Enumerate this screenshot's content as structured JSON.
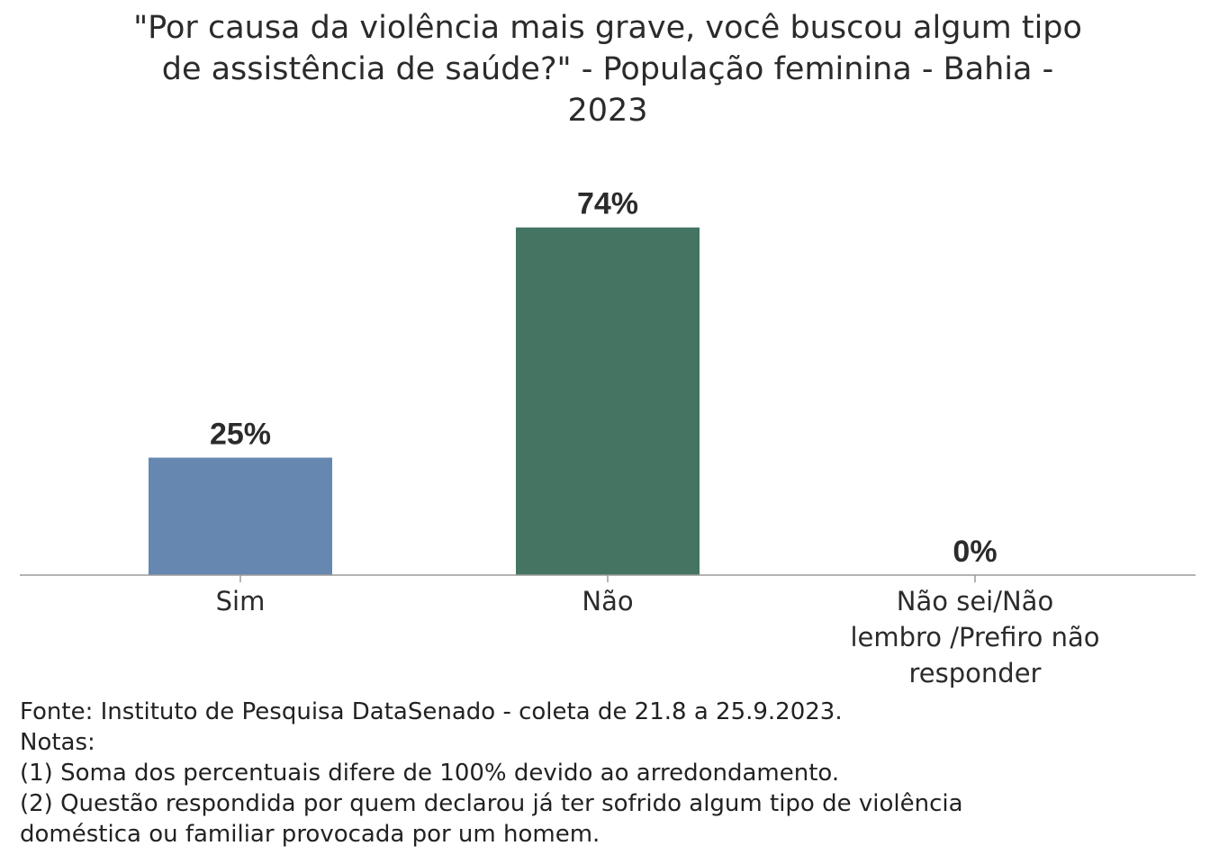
{
  "chart_data": {
    "type": "bar",
    "title_lines": [
      "\"Por causa da violência mais grave, você buscou algum tipo",
      "de assistência de saúde?\" - População feminina - Bahia -",
      "2023"
    ],
    "categories": [
      [
        "Sim"
      ],
      [
        "Não"
      ],
      [
        "Não sei/Não",
        "lembro /Prefiro não",
        "responder"
      ]
    ],
    "values": [
      25,
      74,
      0
    ],
    "value_labels": [
      "25%",
      "74%",
      "0%"
    ],
    "colors": [
      "#6688b0",
      "#447563",
      "#6688b0"
    ],
    "ylim": [
      0,
      100
    ],
    "grid": false,
    "legend": "none"
  },
  "notes": [
    "Fonte: Instituto de Pesquisa DataSenado - coleta de 21.8 a 25.9.2023.",
    "Notas:",
    "(1) Soma dos percentuais difere de 100% devido ao arredondamento.",
    "(2) Questão respondida por quem declarou já ter sofrido algum tipo de violência",
    "doméstica ou familiar provocada por um homem."
  ]
}
